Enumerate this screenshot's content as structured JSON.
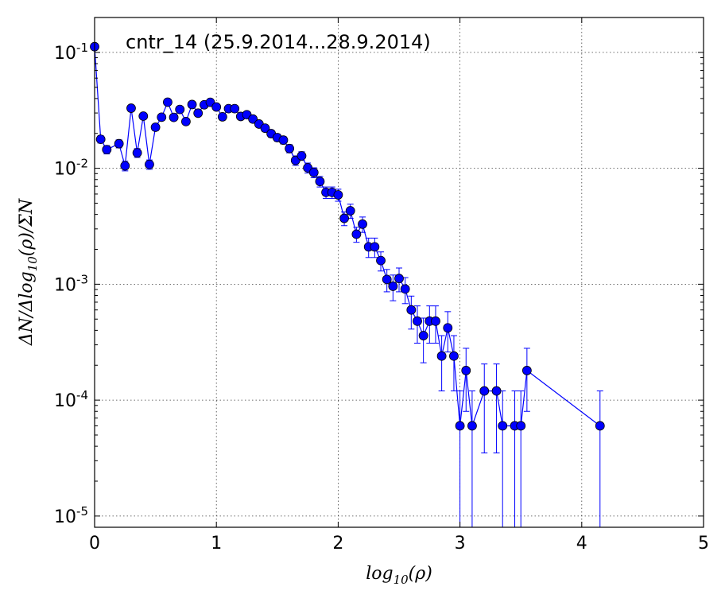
{
  "chart_data": {
    "type": "scatter",
    "title": "cntr_14 (25.9.2014...28.9.2014)",
    "xlabel": "log10(ρ)",
    "ylabel": "ΔN/Δlog10(ρ)/ΣN",
    "xlim": [
      0,
      5
    ],
    "ylim": [
      8e-06,
      0.2
    ],
    "yscale": "log",
    "grid": true,
    "x_ticks": [
      "0",
      "1",
      "2",
      "3",
      "4",
      "5"
    ],
    "y_ticks": [
      {
        "base": "10",
        "exp": "-1"
      },
      {
        "base": "10",
        "exp": "-2"
      },
      {
        "base": "10",
        "exp": "-3"
      },
      {
        "base": "10",
        "exp": "-4"
      },
      {
        "base": "10",
        "exp": "-5"
      }
    ],
    "color": "#0000ff",
    "series": [
      {
        "x": [
          0.0,
          0.05,
          0.1,
          0.2,
          0.25,
          0.3,
          0.35,
          0.4,
          0.45,
          0.5,
          0.55,
          0.6,
          0.65,
          0.7,
          0.75,
          0.8,
          0.85,
          0.9,
          0.95,
          1.0,
          1.05,
          1.1,
          1.15,
          1.2,
          1.25,
          1.3,
          1.35,
          1.4,
          1.45,
          1.5,
          1.55,
          1.6,
          1.65,
          1.7,
          1.75,
          1.8,
          1.85,
          1.9,
          1.95,
          2.0,
          2.05,
          2.1,
          2.15,
          2.2,
          2.25,
          2.3,
          2.35,
          2.4,
          2.45,
          2.5,
          2.55,
          2.6,
          2.65,
          2.7,
          2.75,
          2.8,
          2.85,
          2.9,
          2.95,
          3.0,
          3.05,
          3.1,
          3.2,
          3.3,
          3.35,
          3.45,
          3.5,
          3.55,
          4.15
        ],
        "y": [
          0.112,
          0.0178,
          0.0145,
          0.0163,
          0.0105,
          0.033,
          0.0136,
          0.0282,
          0.0108,
          0.0226,
          0.0276,
          0.0372,
          0.0275,
          0.0322,
          0.0253,
          0.0355,
          0.0299,
          0.0353,
          0.0371,
          0.0338,
          0.0278,
          0.0327,
          0.0327,
          0.028,
          0.029,
          0.0266,
          0.0241,
          0.0222,
          0.0199,
          0.0184,
          0.0175,
          0.0148,
          0.0117,
          0.0128,
          0.0101,
          0.0092,
          0.0077,
          0.0062,
          0.0062,
          0.0059,
          0.0037,
          0.0043,
          0.0027,
          0.0033,
          0.0021,
          0.0021,
          0.0016,
          0.0011,
          0.00096,
          0.00112,
          0.00091,
          0.0006,
          0.00048,
          0.00036,
          0.00048,
          0.00048,
          0.00024,
          0.00042,
          0.00024,
          6e-05,
          0.00018,
          6e-05,
          0.00012,
          0.00012,
          6e-05,
          6e-05,
          6e-05,
          0.00018,
          6e-05
        ],
        "yerr": [
          0.004,
          0.0013,
          0.0012,
          0.0013,
          0.001,
          0.0018,
          0.0012,
          0.0017,
          0.001,
          0.0015,
          0.0017,
          0.0019,
          0.0017,
          0.0018,
          0.0016,
          0.0019,
          0.0017,
          0.0019,
          0.0019,
          0.0018,
          0.0017,
          0.0018,
          0.0018,
          0.0017,
          0.0017,
          0.0016,
          0.0015,
          0.0015,
          0.0014,
          0.0013,
          0.0013,
          0.0012,
          0.0011,
          0.0011,
          0.001,
          0.0009,
          0.0008,
          0.0007,
          0.0007,
          0.0007,
          0.0005,
          0.0006,
          0.0004,
          0.0005,
          0.0004,
          0.0004,
          0.0003,
          0.00024,
          0.00024,
          0.00026,
          0.00023,
          0.00019,
          0.00017,
          0.00015,
          0.00017,
          0.00017,
          0.00012,
          0.00016,
          0.00012,
          6e-05,
          0.0001,
          6e-05,
          8.5e-05,
          8.5e-05,
          6e-05,
          6e-05,
          6e-05,
          0.0001,
          6e-05
        ]
      }
    ]
  }
}
